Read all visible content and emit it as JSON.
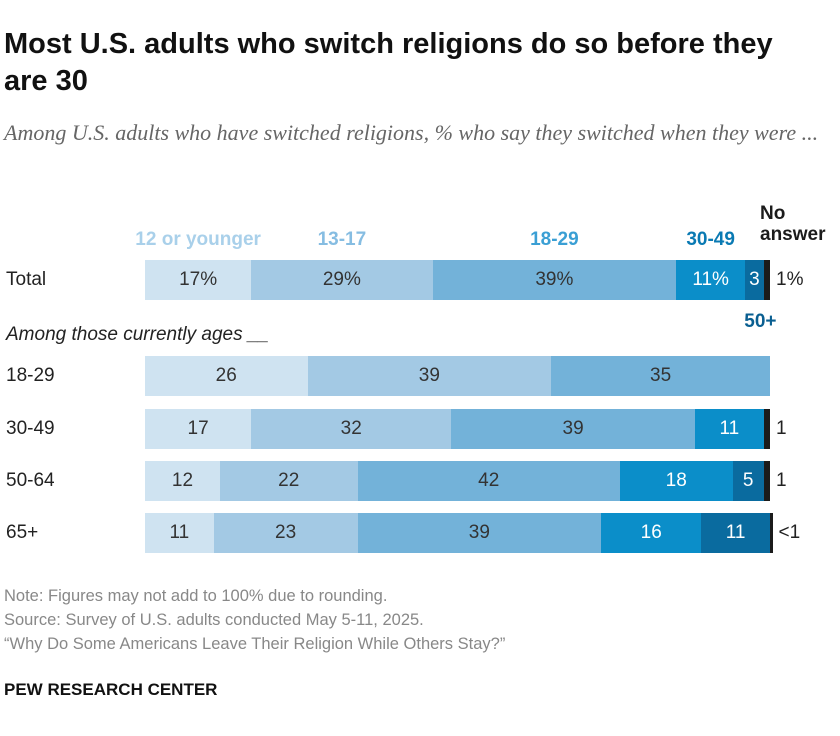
{
  "chart_data": {
    "type": "stacked-bar",
    "title": "Most U.S. adults who switch religions do so before they are 30",
    "subtitle": "Among U.S. adults who have switched religions, % who say they switched when they were ...",
    "group_label": "Among those currently ages __",
    "categories": [
      "Total",
      "18-29",
      "30-49",
      "50-64",
      "65+"
    ],
    "xlim": [
      0,
      100
    ],
    "series": [
      {
        "name": "12 or younger",
        "color": "#cfe3f1",
        "label_color": "#a9d0ea",
        "values": [
          17,
          26,
          17,
          12,
          11
        ],
        "value_labels": [
          "17%",
          "26",
          "17",
          "12",
          "11"
        ]
      },
      {
        "name": "13-17",
        "color": "#a3c9e4",
        "label_color": "#86bde2",
        "values": [
          29,
          39,
          32,
          22,
          23
        ],
        "value_labels": [
          "29%",
          "39",
          "32",
          "22",
          "23"
        ]
      },
      {
        "name": "18-29",
        "color": "#73b2d9",
        "label_color": "#3a9fd4",
        "values": [
          39,
          35,
          39,
          42,
          39
        ],
        "value_labels": [
          "39%",
          "35",
          "39",
          "42",
          "39"
        ]
      },
      {
        "name": "30-49",
        "color": "#0b8ec9",
        "label_color": "#0a7ab3",
        "values": [
          11,
          null,
          11,
          18,
          16
        ],
        "value_labels": [
          "11%",
          null,
          "11",
          "18",
          "16"
        ]
      },
      {
        "name": "50+",
        "color": "#0a6b9f",
        "label_color": "#0a5f91",
        "values": [
          3,
          null,
          null,
          5,
          11
        ],
        "value_labels": [
          "3",
          null,
          null,
          "5",
          "11"
        ]
      },
      {
        "name": "No answer",
        "color": "#1b1b1b",
        "label_color": "#1b1b1b",
        "values": [
          1,
          null,
          1,
          1,
          0.4
        ],
        "value_labels": [
          "1%",
          null,
          "1",
          "1",
          "<1"
        ]
      }
    ],
    "notes": [
      "Note: Figures may not add to 100% due to rounding.",
      "Source: Survey of U.S. adults conducted May 5-11, 2025.",
      "“Why Do Some Americans Leave Their Religion While Others Stay?”"
    ],
    "footer": "PEW RESEARCH CENTER"
  }
}
